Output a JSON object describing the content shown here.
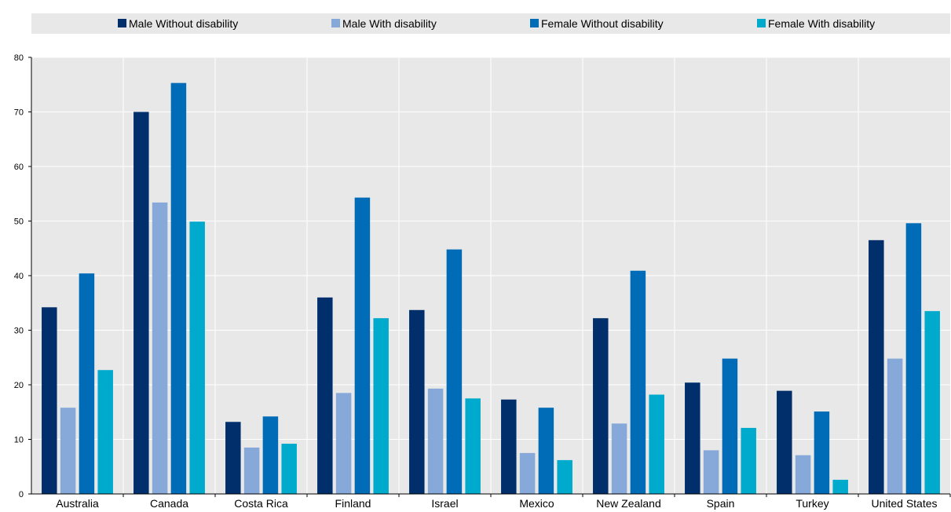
{
  "chart_data": {
    "type": "bar",
    "title": "",
    "xlabel": "",
    "ylabel": "",
    "categories": [
      "Australia",
      "Canada",
      "Costa Rica",
      "Finland",
      "Israel",
      "Mexico",
      "New Zealand",
      "Spain",
      "Turkey",
      "United States"
    ],
    "series": [
      {
        "name": "Male Without disability",
        "color": "#002f6c",
        "values": [
          34.2,
          70.0,
          13.2,
          36.0,
          33.7,
          17.3,
          32.2,
          20.4,
          18.9,
          46.5
        ]
      },
      {
        "name": "Male With disability",
        "color": "#86a9d9",
        "values": [
          15.8,
          53.4,
          8.5,
          18.5,
          19.3,
          7.5,
          12.9,
          8.0,
          7.1,
          24.8
        ]
      },
      {
        "name": "Female Without disability",
        "color": "#006bb6",
        "values": [
          40.4,
          75.3,
          14.2,
          54.3,
          44.8,
          15.8,
          40.9,
          24.8,
          15.1,
          49.6
        ]
      },
      {
        "name": "Female With disability",
        "color": "#00aacc",
        "values": [
          22.7,
          49.9,
          9.2,
          32.2,
          17.5,
          6.2,
          18.2,
          12.1,
          2.6,
          33.5
        ]
      }
    ],
    "ylim": [
      0,
      80
    ],
    "yticks": [
      0,
      10,
      20,
      30,
      40,
      50,
      60,
      70,
      80
    ],
    "grid": true,
    "legend_position": "top",
    "plot_background": "#e8e8e8"
  }
}
